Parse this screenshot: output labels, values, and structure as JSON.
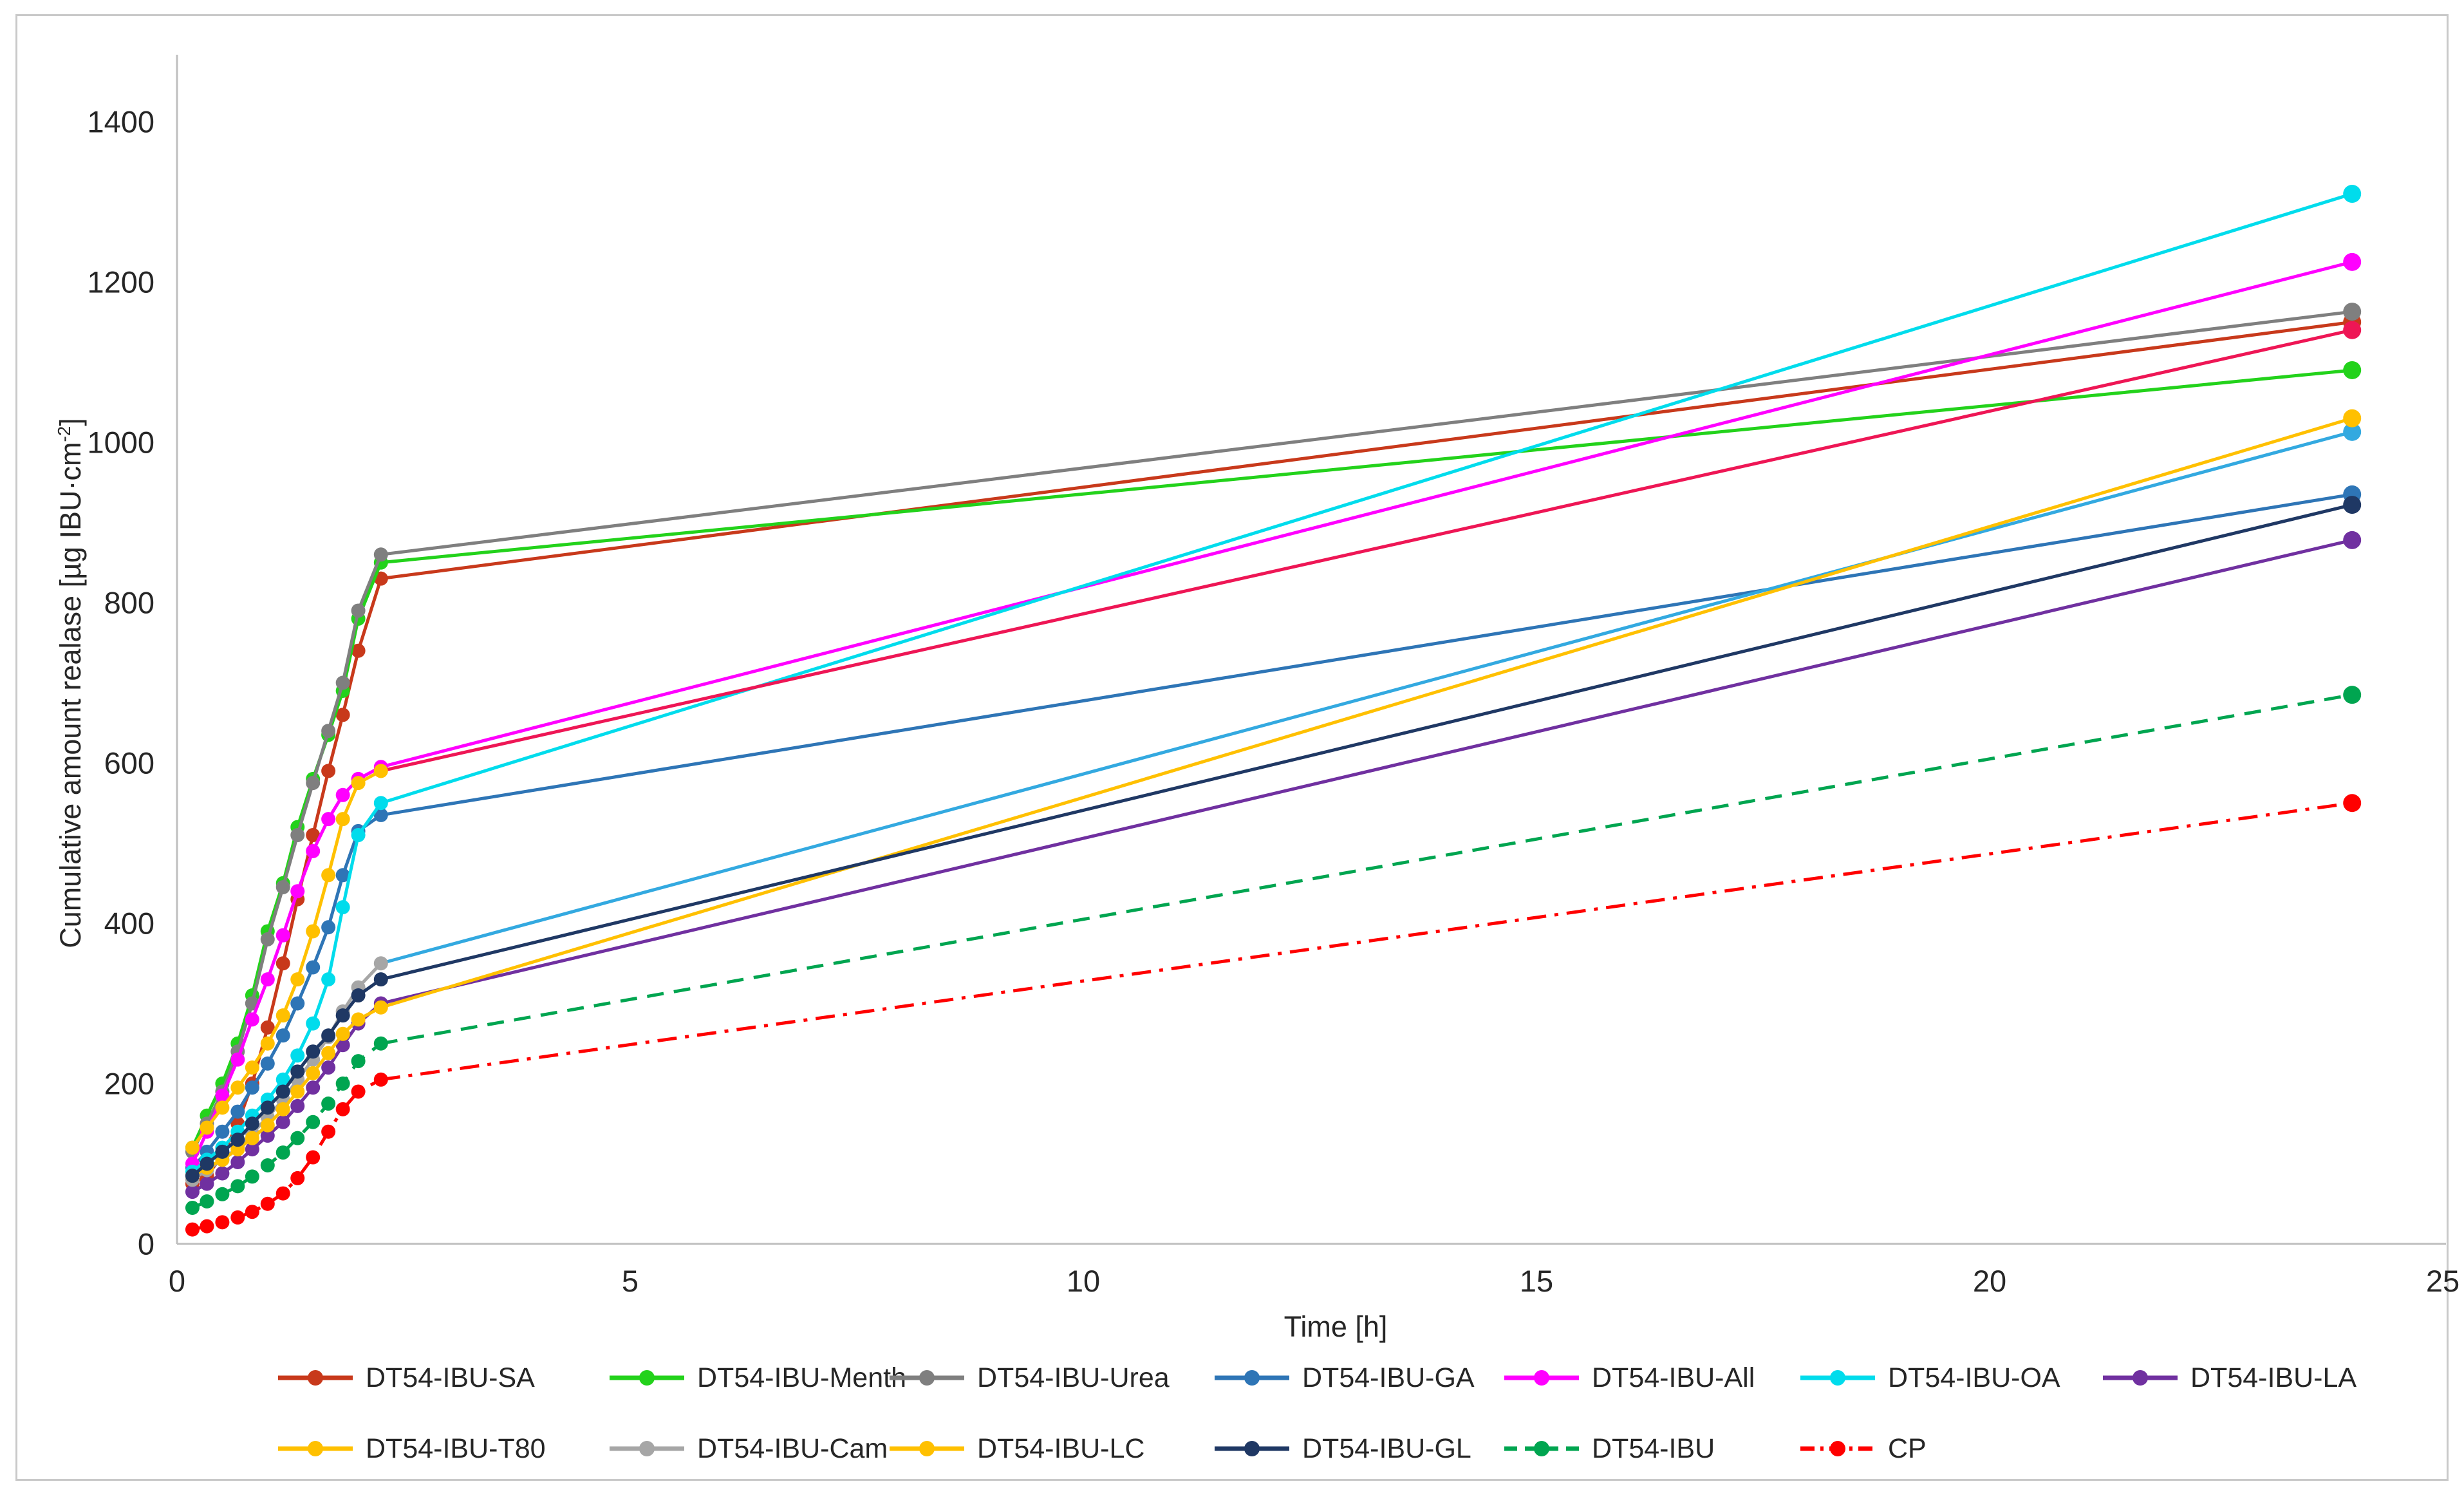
{
  "figure": {
    "y_axis": {
      "title_main": "Cumulative amount realase [µg IBU·cm",
      "title_sup": "-2",
      "title_close": "]",
      "ticks": [
        0,
        200,
        400,
        600,
        800,
        1000,
        1200,
        1400
      ]
    },
    "x_axis": {
      "title": "Time [h]",
      "ticks": [
        0,
        5,
        10,
        15,
        20,
        25
      ]
    },
    "axis_color": "#BFBFBF",
    "text_color": "#262626"
  },
  "chart_data": {
    "type": "line",
    "title": "",
    "xlabel": "Time [h]",
    "ylabel": "Cumulative amount realase [µg IBU·cm-2]",
    "xlim": [
      0,
      25
    ],
    "ylim": [
      0,
      1400
    ],
    "grid": false,
    "legend_position": "bottom",
    "x": [
      0.17,
      0.33,
      0.5,
      0.67,
      0.83,
      1,
      1.17,
      1.33,
      1.5,
      1.67,
      1.83,
      2,
      2.25,
      24
    ],
    "series": [
      {
        "name": "DT54-IBU-SA",
        "color": "#C8391B",
        "dash": "solid",
        "values": [
          75,
          85,
          110,
          150,
          200,
          270,
          350,
          430,
          510,
          590,
          660,
          740,
          830,
          1150
        ]
      },
      {
        "name": "DT54-IBU-Menth",
        "color": "#23D21B",
        "dash": "solid",
        "values": [
          120,
          160,
          200,
          250,
          310,
          390,
          450,
          520,
          580,
          635,
          690,
          780,
          850,
          1090
        ]
      },
      {
        "name": "DT54-IBU-Urea",
        "color": "#7F7F7F",
        "dash": "solid",
        "values": [
          115,
          150,
          190,
          240,
          300,
          380,
          445,
          510,
          575,
          640,
          700,
          790,
          860,
          1163
        ]
      },
      {
        "name": "DT54-IBU-GA",
        "color": "#2E75B6",
        "dash": "solid",
        "values": [
          95,
          115,
          140,
          165,
          195,
          225,
          260,
          300,
          345,
          395,
          460,
          515,
          535,
          935
        ]
      },
      {
        "name": "DT54-IBU-All",
        "color": "#FF00FF",
        "dash": "solid",
        "values": [
          100,
          140,
          185,
          230,
          280,
          330,
          385,
          440,
          490,
          530,
          560,
          580,
          595,
          1225
        ]
      },
      {
        "name": "DT54-IBU-OA",
        "color": "#00DCEC",
        "dash": "solid",
        "values": [
          90,
          105,
          120,
          140,
          160,
          180,
          205,
          235,
          275,
          330,
          420,
          510,
          550,
          1310
        ]
      },
      {
        "name": "DT54-IBU-LA",
        "color": "#7030A0",
        "dash": "solid",
        "values": [
          65,
          75,
          88,
          102,
          118,
          135,
          152,
          172,
          195,
          220,
          248,
          275,
          300,
          878
        ]
      },
      {
        "name": "DT54-IBU-T80",
        "color": "#FFC000",
        "tail_color": "#EE1655",
        "dash": "solid",
        "values": [
          120,
          145,
          170,
          195,
          220,
          250,
          285,
          330,
          390,
          460,
          530,
          575,
          590,
          1140
        ]
      },
      {
        "name": "DT54-IBU-Cam",
        "color": "#A6A6A6",
        "tail_color": "#33A9E0",
        "dash": "solid",
        "values": [
          80,
          92,
          105,
          120,
          138,
          158,
          180,
          205,
          230,
          258,
          290,
          320,
          350,
          1013
        ]
      },
      {
        "name": "DT54-IBU-LC",
        "color": "#FFC000",
        "dash": "solid",
        "values": [
          85,
          95,
          105,
          118,
          132,
          148,
          168,
          190,
          213,
          238,
          262,
          280,
          295,
          1030
        ]
      },
      {
        "name": "DT54-IBU-GL",
        "color": "#1F3864",
        "dash": "solid",
        "values": [
          85,
          100,
          115,
          130,
          150,
          170,
          190,
          215,
          240,
          260,
          285,
          310,
          330,
          922
        ]
      },
      {
        "name": "DT54-IBU",
        "color": "#00A550",
        "dash": "dashed",
        "values": [
          45,
          53,
          62,
          72,
          84,
          98,
          114,
          132,
          152,
          175,
          200,
          228,
          250,
          685
        ]
      },
      {
        "name": "CP",
        "color": "#FF0000",
        "dash": "dashdot",
        "values": [
          18,
          22,
          27,
          33,
          40,
          50,
          63,
          82,
          108,
          140,
          168,
          190,
          205,
          550
        ]
      }
    ]
  },
  "legend": {
    "row1_names": [
      "DT54-IBU-SA",
      "DT54-IBU-Menth",
      "DT54-IBU-Urea",
      "DT54-IBU-GA",
      "DT54-IBU-All",
      "DT54-IBU-OA",
      "DT54-IBU-LA"
    ],
    "row2_names": [
      "DT54-IBU-T80",
      "DT54-IBU-Cam",
      "DT54-IBU-LC",
      "DT54-IBU-GL",
      "DT54-IBU",
      "CP"
    ]
  }
}
